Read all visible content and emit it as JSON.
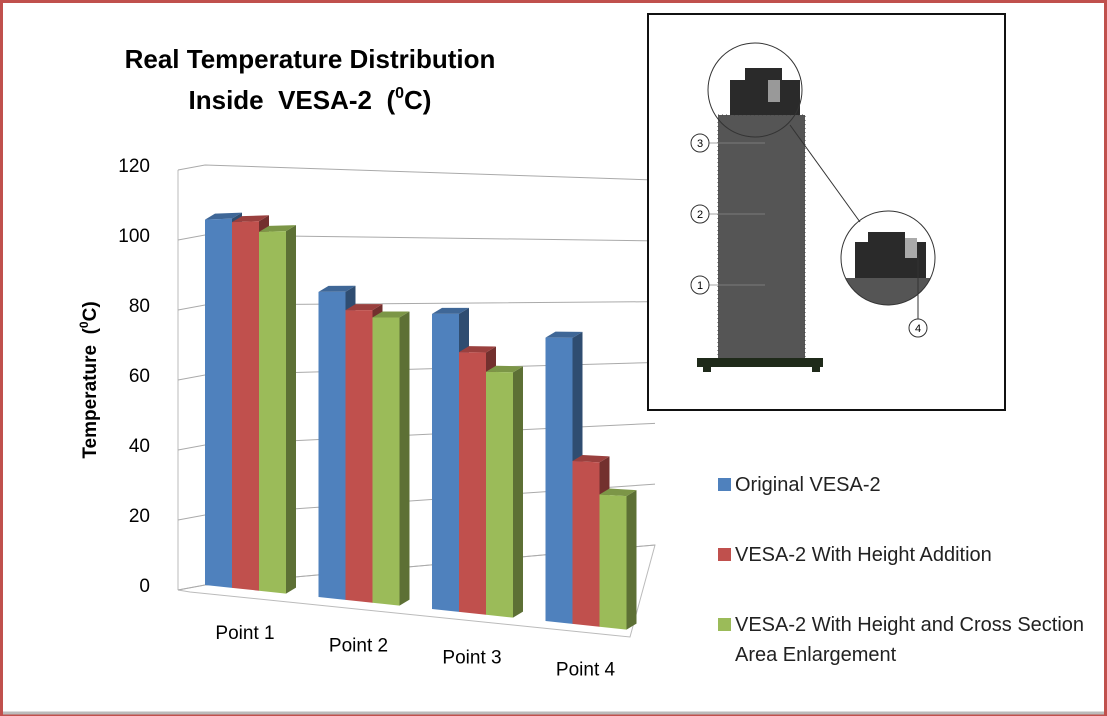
{
  "chart_data": {
    "type": "bar3d",
    "title": [
      "Real Temperature Distribution",
      "Inside  VESA-2  (",
      "0",
      "C)"
    ],
    "y_label": [
      "Temperature  (",
      "0",
      "C)"
    ],
    "categories": [
      "Point 1",
      "Point 2",
      "Point 3",
      "Point 4"
    ],
    "series": [
      {
        "name": "Original VESA-2",
        "color": "#4f81bd",
        "values": [
          105,
          84,
          78,
          72
        ]
      },
      {
        "name": "VESA-2 With Height Addition",
        "color": "#c0504d",
        "values": [
          104,
          79,
          68,
          41
        ]
      },
      {
        "name": "VESA-2 With Height and  Cross Section Area Enlargement",
        "color": "#9bbb59",
        "values": [
          101,
          77,
          63,
          33
        ]
      }
    ],
    "ylim": [
      0,
      120
    ],
    "yticks": [
      0,
      20,
      40,
      60,
      80,
      100,
      120
    ],
    "grid": true,
    "legend": "right"
  },
  "inset": {
    "labels": [
      "3",
      "2",
      "1",
      "4"
    ]
  }
}
